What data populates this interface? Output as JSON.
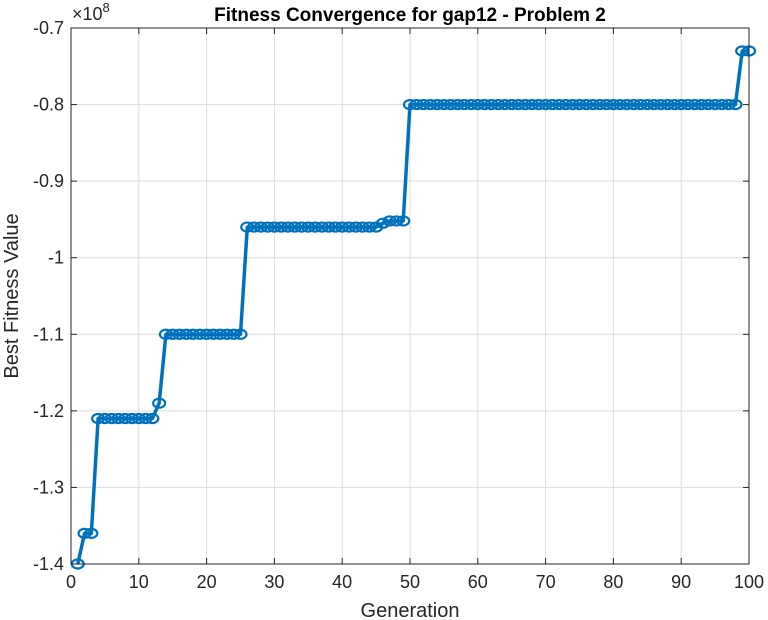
{
  "chart_data": {
    "type": "line",
    "title": "Fitness Convergence for gap12 - Problem 2",
    "xlabel": "Generation",
    "ylabel": "Best Fitness Value",
    "y_exponent_base": "×10",
    "y_exponent_power": "8",
    "xlim": [
      0,
      100
    ],
    "ylim": [
      -1.4,
      -0.7
    ],
    "y_scale_factor": 100000000,
    "xticks": [
      0,
      10,
      20,
      30,
      40,
      50,
      60,
      70,
      80,
      90,
      100
    ],
    "yticks": [
      -1.4,
      -1.3,
      -1.2,
      -1.1,
      -1,
      -0.9,
      -0.8,
      -0.7
    ],
    "yticklabels": [
      "-1.4",
      "-1.3",
      "-1.2",
      "-1.1",
      "-1",
      "-0.9",
      "-0.8",
      "-0.7"
    ],
    "grid": true,
    "line_color": "#0072BD",
    "marker": "circle",
    "series": [
      {
        "x": [
          1,
          2,
          3,
          4,
          5,
          6,
          7,
          8,
          9,
          10,
          11,
          12,
          13,
          14,
          15,
          16,
          17,
          18,
          19,
          20,
          21,
          22,
          23,
          24,
          25,
          26,
          27,
          28,
          29,
          30,
          31,
          32,
          33,
          34,
          35,
          36,
          37,
          38,
          39,
          40,
          41,
          42,
          43,
          44,
          45,
          46,
          47,
          48,
          49,
          50,
          51,
          52,
          53,
          54,
          55,
          56,
          57,
          58,
          59,
          60,
          61,
          62,
          63,
          64,
          65,
          66,
          67,
          68,
          69,
          70,
          71,
          72,
          73,
          74,
          75,
          76,
          77,
          78,
          79,
          80,
          81,
          82,
          83,
          84,
          85,
          86,
          87,
          88,
          89,
          90,
          91,
          92,
          93,
          94,
          95,
          96,
          97,
          98,
          99,
          100
        ],
        "values": [
          -1.4,
          -1.36,
          -1.36,
          -1.21,
          -1.21,
          -1.21,
          -1.21,
          -1.21,
          -1.21,
          -1.21,
          -1.21,
          -1.21,
          -1.19,
          -1.1,
          -1.1,
          -1.1,
          -1.1,
          -1.1,
          -1.1,
          -1.1,
          -1.1,
          -1.1,
          -1.1,
          -1.1,
          -1.1,
          -0.96,
          -0.96,
          -0.96,
          -0.96,
          -0.96,
          -0.96,
          -0.96,
          -0.96,
          -0.96,
          -0.96,
          -0.96,
          -0.96,
          -0.96,
          -0.96,
          -0.96,
          -0.96,
          -0.96,
          -0.96,
          -0.96,
          -0.96,
          -0.955,
          -0.952,
          -0.952,
          -0.952,
          -0.8,
          -0.8,
          -0.8,
          -0.8,
          -0.8,
          -0.8,
          -0.8,
          -0.8,
          -0.8,
          -0.8,
          -0.8,
          -0.8,
          -0.8,
          -0.8,
          -0.8,
          -0.8,
          -0.8,
          -0.8,
          -0.8,
          -0.8,
          -0.8,
          -0.8,
          -0.8,
          -0.8,
          -0.8,
          -0.8,
          -0.8,
          -0.8,
          -0.8,
          -0.8,
          -0.8,
          -0.8,
          -0.8,
          -0.8,
          -0.8,
          -0.8,
          -0.8,
          -0.8,
          -0.8,
          -0.8,
          -0.8,
          -0.8,
          -0.8,
          -0.8,
          -0.8,
          -0.8,
          -0.8,
          -0.8,
          -0.8,
          -0.73,
          -0.73
        ]
      }
    ]
  }
}
